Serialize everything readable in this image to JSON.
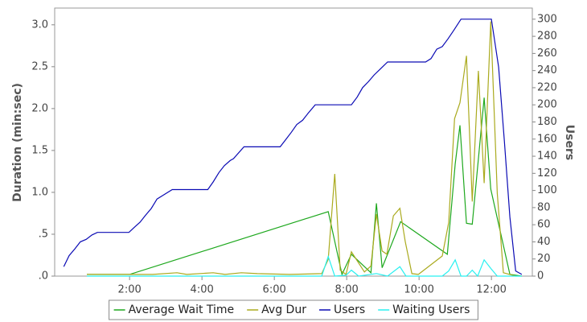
{
  "chart_data": {
    "type": "line",
    "y_label": "Duration (min:sec)",
    "y2_label": "Users",
    "xlim": [
      -0.07,
      13.13
    ],
    "xticks": [
      {
        "value": 2,
        "label": "2:00"
      },
      {
        "value": 4,
        "label": "4:00"
      },
      {
        "value": 6,
        "label": "6:00"
      },
      {
        "value": 8,
        "label": "8:00"
      },
      {
        "value": 10,
        "label": "10:00"
      },
      {
        "value": 12,
        "label": "12:00"
      }
    ],
    "ylim": [
      0,
      3.2
    ],
    "yticks": [
      {
        "value": 0,
        "label": ".0"
      },
      {
        "value": 0.5,
        "label": ".5"
      },
      {
        "value": 1,
        "label": "1.0"
      },
      {
        "value": 1.5,
        "label": "1.5"
      },
      {
        "value": 2,
        "label": "2.0"
      },
      {
        "value": 2.5,
        "label": "2.5"
      },
      {
        "value": 3,
        "label": "3.0"
      }
    ],
    "y2lim": [
      0,
      313
    ],
    "y2ticks": [
      0,
      20,
      40,
      60,
      80,
      100,
      120,
      140,
      160,
      180,
      200,
      220,
      240,
      260,
      280,
      300
    ],
    "series": [
      {
        "name": "Average Wait Time",
        "color": "#1ea81e",
        "x": [
          0.82,
          2.0,
          7.49,
          7.87,
          8.13,
          8.67,
          8.82,
          8.98,
          9.49,
          10.78,
          11.0,
          11.13,
          11.31,
          11.47,
          11.8,
          11.98,
          12.51,
          12.84
        ],
        "values": [
          0.02,
          0.02,
          0.77,
          0.02,
          0.26,
          0.04,
          0.87,
          0.1,
          0.65,
          0.26,
          1.34,
          1.8,
          0.63,
          0.62,
          2.13,
          1.04,
          0.02,
          0
        ]
      },
      {
        "name": "Avg Dur",
        "color": "#aaaa1e",
        "x": [
          0.82,
          1.53,
          2.64,
          3.31,
          3.58,
          4.31,
          4.64,
          5.09,
          5.53,
          6.42,
          7.31,
          7.49,
          7.67,
          7.82,
          7.98,
          8.13,
          8.49,
          8.67,
          8.82,
          8.98,
          9.11,
          9.29,
          9.47,
          9.62,
          9.8,
          9.98,
          10.64,
          10.82,
          10.98,
          11.13,
          11.31,
          11.47,
          11.64,
          11.8,
          11.98,
          12.16,
          12.33,
          12.67
        ],
        "values": [
          0.02,
          0.02,
          0.02,
          0.04,
          0.02,
          0.04,
          0.02,
          0.04,
          0.03,
          0.02,
          0.03,
          0.2,
          1.22,
          0.07,
          0.02,
          0.29,
          0.05,
          0.12,
          0.74,
          0.3,
          0.26,
          0.72,
          0.81,
          0.41,
          0.03,
          0.02,
          0.24,
          0.64,
          1.88,
          2.07,
          2.63,
          0.89,
          2.45,
          1.11,
          3.04,
          0.99,
          0.04,
          0
        ]
      },
      {
        "name": "Users",
        "color": "#0a0ab4",
        "axis": "y2",
        "x": [
          0.18,
          0.33,
          0.49,
          0.64,
          0.8,
          0.96,
          1.11,
          1.98,
          2.13,
          2.29,
          2.44,
          2.6,
          2.76,
          2.91,
          3.18,
          4.16,
          4.31,
          4.47,
          4.62,
          4.78,
          4.87,
          5.16,
          6.16,
          6.31,
          6.47,
          6.62,
          6.78,
          6.93,
          7.13,
          8.13,
          8.29,
          8.44,
          8.6,
          8.76,
          8.91,
          9.13,
          10.18,
          10.33,
          10.49,
          10.64,
          10.8,
          10.96,
          11.16,
          12.0,
          12.2,
          12.36,
          12.51,
          12.67,
          12.84
        ],
        "values": [
          11,
          24,
          32,
          40,
          43,
          48,
          51,
          51,
          57,
          63,
          71,
          79,
          90,
          94,
          101,
          101,
          110,
          121,
          129,
          135,
          137,
          151,
          151,
          159,
          168,
          177,
          182,
          190,
          200,
          200,
          209,
          220,
          227,
          235,
          241,
          250,
          250,
          254,
          265,
          268,
          277,
          287,
          300,
          300,
          244,
          157,
          69,
          6,
          2
        ]
      },
      {
        "name": "Waiting Users",
        "color": "#28f0f0",
        "axis": "y2",
        "x": [
          0.82,
          7.31,
          7.49,
          7.67,
          7.98,
          8.13,
          8.33,
          8.82,
          9.13,
          9.47,
          9.64,
          10.64,
          10.82,
          11.0,
          11.16,
          11.31,
          11.47,
          11.62,
          11.8,
          11.98,
          12.16,
          12.84
        ],
        "values": [
          0,
          0,
          23,
          0,
          1,
          7,
          0,
          3,
          0,
          11,
          0,
          0,
          6,
          19,
          0,
          0,
          7,
          0,
          19,
          9,
          0,
          0
        ]
      }
    ]
  }
}
